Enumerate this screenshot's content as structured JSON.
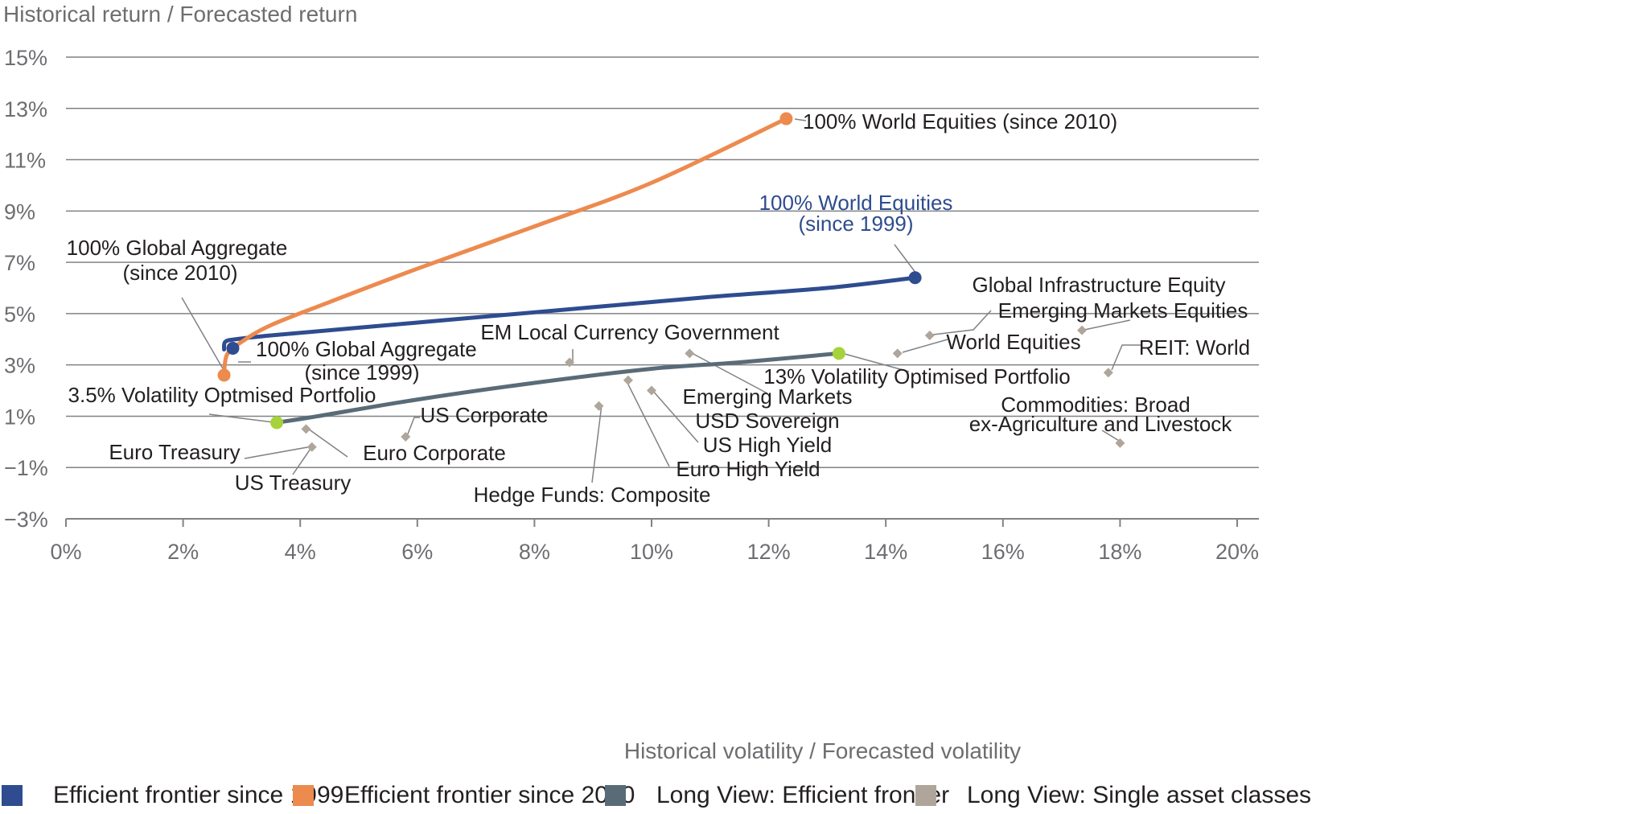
{
  "chart_data": {
    "type": "scatter",
    "ylabel": "Historical return / Forecasted return",
    "xlabel": "Historical volatility / Forecasted volatility",
    "xlim": [
      0,
      20
    ],
    "ylim": [
      -3,
      15
    ],
    "x_ticks": [
      0,
      2,
      4,
      6,
      8,
      10,
      12,
      14,
      16,
      18,
      20
    ],
    "y_ticks": [
      -3,
      -1,
      1,
      3,
      5,
      7,
      9,
      11,
      13,
      15
    ],
    "x_tick_labels": [
      "0%",
      "2%",
      "4%",
      "6%",
      "8%",
      "10%",
      "12%",
      "14%",
      "16%",
      "18%",
      "20%"
    ],
    "y_tick_labels": [
      "−3%",
      "−1%",
      "1%",
      "3%",
      "5%",
      "7%",
      "9%",
      "11%",
      "13%",
      "15%"
    ],
    "grid": "horizontal",
    "legend_position": "bottom",
    "colors": {
      "frontier_1999": "#2e4c8f",
      "frontier_2010": "#ed8a4e",
      "long_view_frontier": "#5a6b78",
      "single_assets": "#b0a59a",
      "optimised_marker": "#a6d33b"
    },
    "series": [
      {
        "name": "Efficient frontier since 1999",
        "color": "#2e4c8f",
        "points": [
          [
            2.7,
            3.6
          ],
          [
            2.72,
            3.9
          ],
          [
            2.9,
            4.0
          ],
          [
            3.5,
            4.15
          ],
          [
            5,
            4.45
          ],
          [
            7,
            4.85
          ],
          [
            9,
            5.25
          ],
          [
            11,
            5.65
          ],
          [
            13,
            6.0
          ],
          [
            14.5,
            6.4
          ]
        ]
      },
      {
        "name": "Efficient frontier since 2010",
        "color": "#ed8a4e",
        "points": [
          [
            2.7,
            2.6
          ],
          [
            2.75,
            3.4
          ],
          [
            3.0,
            3.9
          ],
          [
            3.5,
            4.55
          ],
          [
            4.5,
            5.45
          ],
          [
            6,
            6.75
          ],
          [
            8,
            8.4
          ],
          [
            10,
            10.1
          ],
          [
            12.3,
            12.6
          ]
        ]
      },
      {
        "name": "Long View: Efficient frontier",
        "color": "#5a6b78",
        "points": [
          [
            3.6,
            0.75
          ],
          [
            4.3,
            1.0
          ],
          [
            6,
            1.65
          ],
          [
            8,
            2.3
          ],
          [
            10,
            2.85
          ],
          [
            11.5,
            3.1
          ],
          [
            13.2,
            3.45
          ]
        ]
      },
      {
        "name": "Long View: Single asset classes",
        "color": "#b0a59a",
        "points": [
          {
            "x": 4.1,
            "y": 0.5
          },
          {
            "x": 4.2,
            "y": -0.2
          },
          {
            "x": 5.8,
            "y": 0.2
          },
          {
            "x": 8.6,
            "y": 3.1
          },
          {
            "x": 9.1,
            "y": 1.4
          },
          {
            "x": 9.6,
            "y": 2.4
          },
          {
            "x": 10.0,
            "y": 2.0
          },
          {
            "x": 10.65,
            "y": 3.45
          },
          {
            "x": 14.2,
            "y": 3.45
          },
          {
            "x": 14.75,
            "y": 4.15
          },
          {
            "x": 17.35,
            "y": 4.35
          },
          {
            "x": 17.8,
            "y": 2.7
          },
          {
            "x": 18.0,
            "y": -0.05
          }
        ]
      }
    ],
    "endpoints": [
      {
        "x": 12.3,
        "y": 12.6,
        "color": "#ed8a4e"
      },
      {
        "x": 2.7,
        "y": 2.6,
        "color": "#ed8a4e"
      },
      {
        "x": 14.5,
        "y": 6.4,
        "color": "#2e4c8f"
      },
      {
        "x": 2.85,
        "y": 3.65,
        "color": "#2e4c8f"
      },
      {
        "x": 3.6,
        "y": 0.75,
        "color": "#a6d33b"
      },
      {
        "x": 13.2,
        "y": 3.45,
        "color": "#a6d33b"
      }
    ],
    "annotations": [
      {
        "text": "100% World Equities (since 2010)",
        "color": "#231f20"
      },
      {
        "text": "100% World Equities",
        "color": "#2e4c8f"
      },
      {
        "text": "(since 1999)",
        "color": "#2e4c8f"
      },
      {
        "text": "100% Global Aggregate",
        "color": "#231f20"
      },
      {
        "text": "(since 2010)",
        "color": "#231f20"
      },
      {
        "text": "100% Global Aggregate",
        "color": "#231f20"
      },
      {
        "text": "(since 1999)",
        "color": "#231f20"
      },
      {
        "text": "3.5% Volatility Optmised Portfolio",
        "color": "#231f20"
      },
      {
        "text": "13% Volatility Optimised Portfolio",
        "color": "#231f20"
      },
      {
        "text": "EM Local Currency Government",
        "color": "#231f20"
      },
      {
        "text": "Global Infrastructure Equity",
        "color": "#231f20"
      },
      {
        "text": "Emerging Markets Equities",
        "color": "#231f20"
      },
      {
        "text": "World Equities",
        "color": "#231f20"
      },
      {
        "text": "REIT: World",
        "color": "#231f20"
      },
      {
        "text": "Emerging Markets",
        "color": "#231f20"
      },
      {
        "text": "USD Sovereign",
        "color": "#231f20"
      },
      {
        "text": "US High Yield",
        "color": "#231f20"
      },
      {
        "text": "Euro High Yield",
        "color": "#231f20"
      },
      {
        "text": "Commodities: Broad",
        "color": "#231f20"
      },
      {
        "text": "ex-Agriculture and Livestock",
        "color": "#231f20"
      },
      {
        "text": "US Corporate",
        "color": "#231f20"
      },
      {
        "text": "Euro Treasury",
        "color": "#231f20"
      },
      {
        "text": "Euro Corporate",
        "color": "#231f20"
      },
      {
        "text": "US Treasury",
        "color": "#231f20"
      },
      {
        "text": "Hedge Funds: Composite",
        "color": "#231f20"
      }
    ]
  },
  "legend": [
    {
      "label": "Efficient frontier since 1999",
      "color": "#2e4c8f"
    },
    {
      "label": "Efficient frontier since 2010",
      "color": "#ed8a4e"
    },
    {
      "label": "Long View: Efficient frontier",
      "color": "#5a6b78"
    },
    {
      "label": "Long View: Single asset classes",
      "color": "#b0a59a"
    }
  ]
}
